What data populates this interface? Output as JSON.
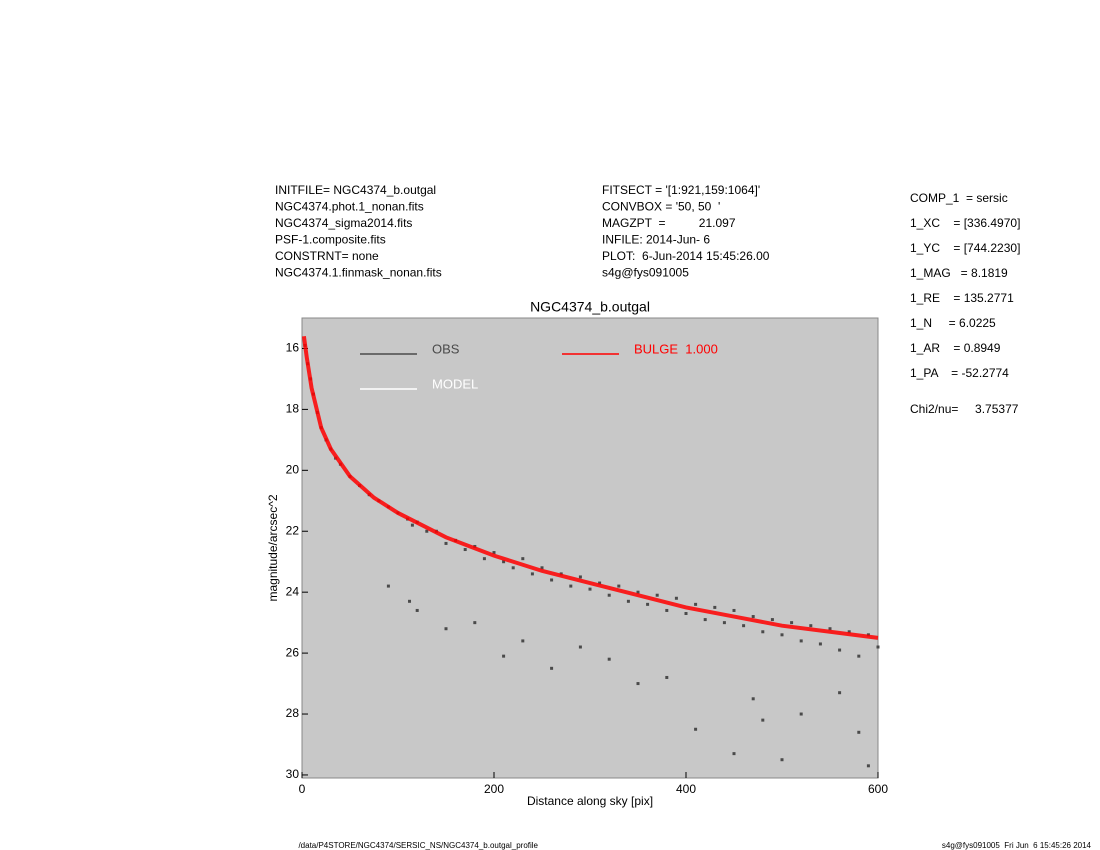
{
  "chart_data": {
    "type": "scatter",
    "title": "NGC4374_b.outgal",
    "x_label": "Distance along sky [pix]",
    "y_label": "magnitude/arcsec^2",
    "xlim": [
      0,
      600
    ],
    "xticks": [
      0,
      200,
      400,
      600
    ],
    "ylim": [
      30.1,
      15
    ],
    "yticks": [
      16,
      18,
      20,
      22,
      24,
      26,
      28,
      30
    ],
    "series": [
      {
        "name": "OBS",
        "color": "#4a4a4a",
        "mode": "points",
        "x": [
          3,
          6,
          9,
          12,
          16,
          20,
          25,
          30,
          35,
          40,
          50,
          60,
          70,
          80,
          90,
          100,
          110,
          115,
          120,
          130,
          140,
          150,
          160,
          170,
          180,
          190,
          200,
          210,
          220,
          230,
          240,
          250,
          260,
          270,
          280,
          290,
          300,
          310,
          320,
          330,
          340,
          350,
          360,
          370,
          380,
          390,
          400,
          410,
          420,
          430,
          440,
          450,
          460,
          470,
          480,
          490,
          500,
          510,
          520,
          530,
          540,
          550,
          560,
          570,
          580,
          590,
          600,
          90,
          112,
          120,
          150,
          180,
          210,
          230,
          260,
          290,
          320,
          350,
          380,
          410,
          450,
          470,
          480,
          500,
          520,
          560,
          580,
          590
        ],
        "values": [
          15.9,
          16.5,
          17.0,
          17.5,
          18.1,
          18.6,
          19.0,
          19.3,
          19.6,
          19.8,
          20.2,
          20.5,
          20.8,
          21.0,
          21.2,
          21.4,
          21.6,
          21.8,
          21.7,
          22.0,
          22.0,
          22.4,
          22.3,
          22.6,
          22.5,
          22.9,
          22.7,
          23.0,
          23.2,
          22.9,
          23.4,
          23.2,
          23.6,
          23.4,
          23.8,
          23.5,
          23.9,
          23.7,
          24.1,
          23.8,
          24.3,
          24.0,
          24.4,
          24.1,
          24.6,
          24.2,
          24.7,
          24.4,
          24.9,
          24.5,
          25.0,
          24.6,
          25.1,
          24.8,
          25.3,
          24.9,
          25.4,
          25.0,
          25.6,
          25.1,
          25.7,
          25.2,
          25.9,
          25.3,
          26.1,
          25.4,
          25.8,
          23.8,
          24.3,
          24.6,
          25.2,
          25.0,
          26.1,
          25.6,
          26.5,
          25.8,
          26.2,
          27.0,
          26.8,
          28.5,
          29.3,
          27.5,
          28.2,
          29.5,
          28.0,
          27.3,
          28.6,
          29.7
        ]
      },
      {
        "name": "MODEL",
        "color": "#ffffff",
        "mode": "legend"
      },
      {
        "name": "BULGE  1.000",
        "color": "#ff0000",
        "mode": "line",
        "x": [
          2,
          5,
          10,
          20,
          30,
          50,
          75,
          100,
          150,
          200,
          250,
          300,
          350,
          400,
          450,
          500,
          550,
          600
        ],
        "values": [
          15.6,
          16.3,
          17.3,
          18.6,
          19.3,
          20.2,
          20.9,
          21.4,
          22.2,
          22.8,
          23.3,
          23.7,
          24.1,
          24.5,
          24.8,
          25.1,
          25.3,
          25.5
        ]
      }
    ]
  },
  "info": {
    "left": [
      "INITFILE= NGC4374_b.outgal",
      "NGC4374.phot.1_nonan.fits",
      "NGC4374_sigma2014.fits",
      "PSF-1.composite.fits",
      "CONSTRNT= none",
      "NGC4374.1.finmask_nonan.fits"
    ],
    "middle": [
      "FITSECT = '[1:921,159:1064]'",
      "CONVBOX = '50, 50  '",
      "MAGZPT  =          21.097",
      "INFILE: 2014-Jun- 6",
      "PLOT:  6-Jun-2014 15:45:26.00",
      "s4g@fys091005"
    ],
    "params": [
      "COMP_1  = sersic",
      "1_XC    = [336.4970]",
      "1_YC    = [744.2230]",
      "1_MAG   = 8.1819",
      "1_RE    = 135.2771",
      "1_N     = 6.0225",
      "1_AR    = 0.8949",
      "1_PA    = -52.2774"
    ],
    "chi": "Chi2/nu=     3.75377",
    "footer_left": "/data/P4STORE/NGC4374/SERSIC_NS/NGC4374_b.outgal_profile",
    "footer_right": "s4g@fys091005  Fri Jun  6 15:45:26 2014"
  }
}
